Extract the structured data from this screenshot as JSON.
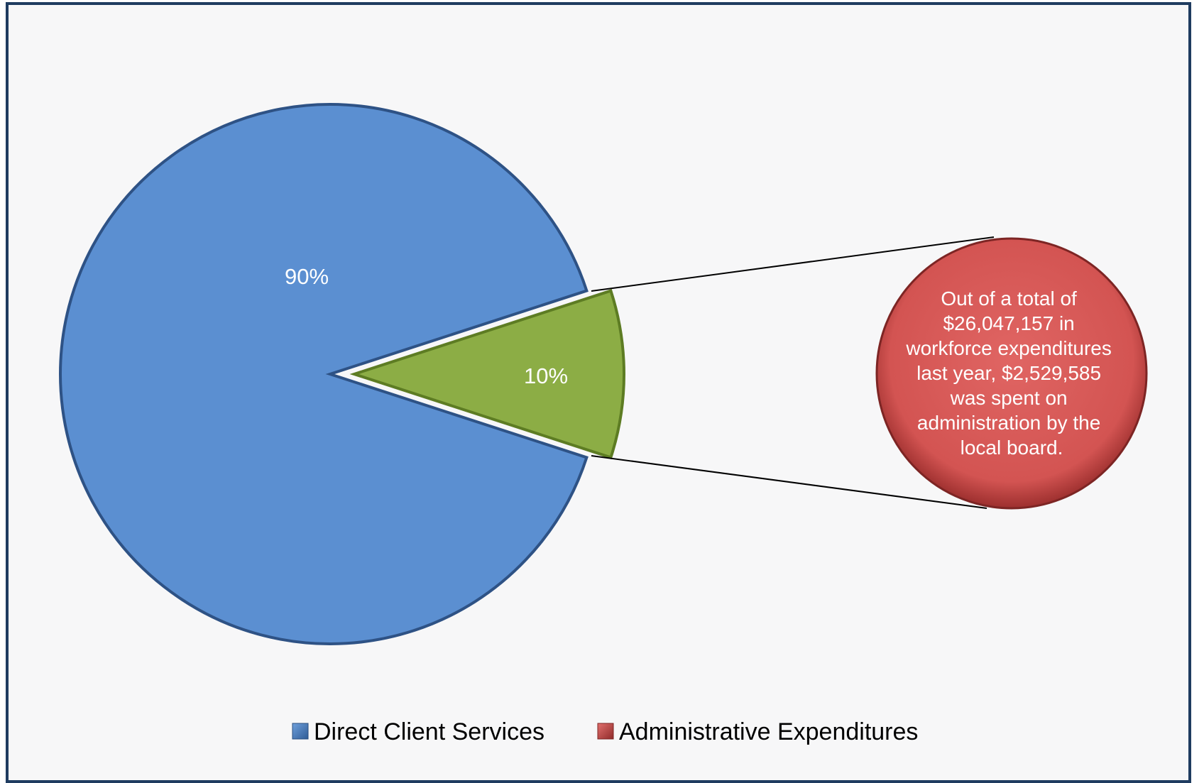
{
  "chart_data": {
    "type": "pie",
    "categories": [
      "Direct Client Services",
      "Administrative Expenditures"
    ],
    "values": [
      90,
      10
    ],
    "data_labels": [
      "90%",
      "10%"
    ],
    "colors": [
      "#5b8fd1",
      "#8cad45",
      "#d9504f"
    ],
    "legend": {
      "position": "bottom",
      "entries": [
        {
          "label": "Direct Client Services",
          "color": "#4a7fc0"
        },
        {
          "label": "Administrative Expenditures",
          "color": "#c94a48"
        }
      ]
    },
    "callout": {
      "lines": [
        "Out of a total of",
        "$26,047,157 in",
        "workforce expenditures",
        "last year, $2,529,585",
        "was spent on",
        "administration by the",
        "local board."
      ],
      "color": "#d9504f"
    }
  }
}
